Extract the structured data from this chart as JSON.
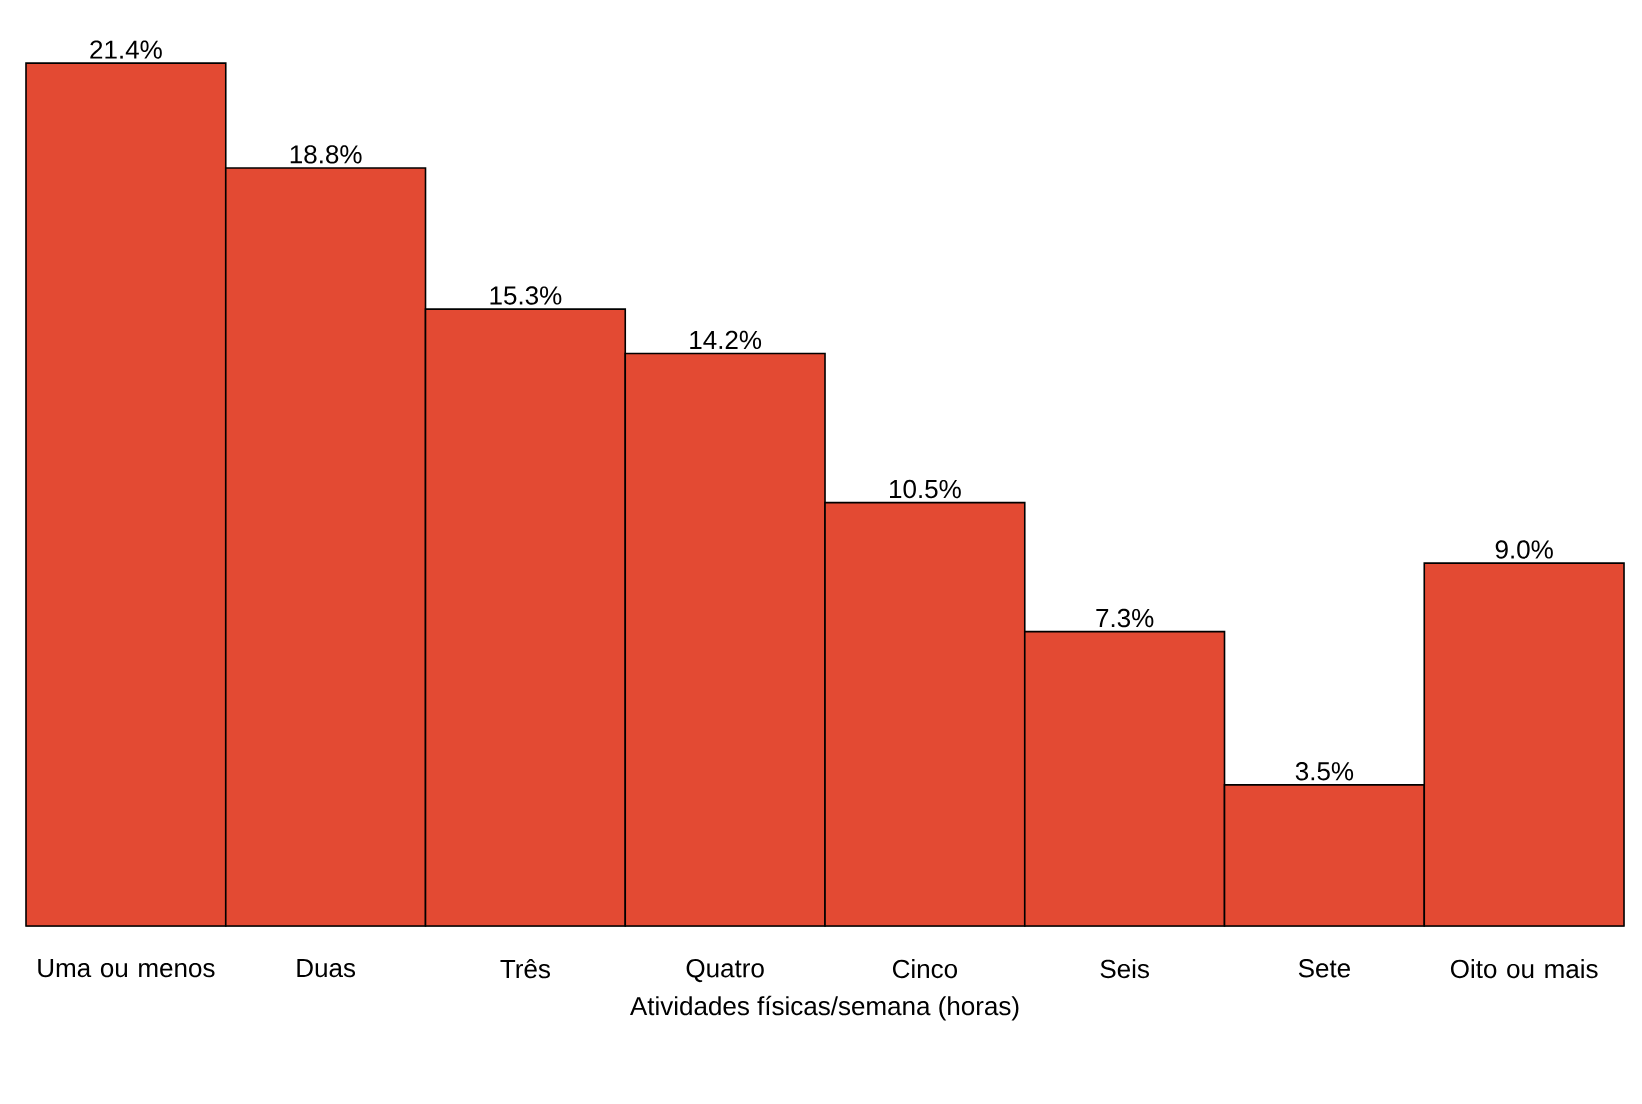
{
  "chart_data": {
    "type": "bar",
    "xlabel": "Atividades físicas/semana (horas)",
    "categories": [
      "Uma ou menos",
      "Duas",
      "Três",
      "Quatro",
      "Cinco",
      "Seis",
      "Sete",
      "Oito ou mais"
    ],
    "values": [
      21.4,
      18.8,
      15.3,
      14.2,
      10.5,
      7.3,
      3.5,
      9.0
    ],
    "value_labels": [
      "21.4%",
      "18.8%",
      "15.3%",
      "14.2%",
      "10.5%",
      "7.3%",
      "3.5%",
      "9.0%"
    ],
    "color": "#e34a33"
  }
}
